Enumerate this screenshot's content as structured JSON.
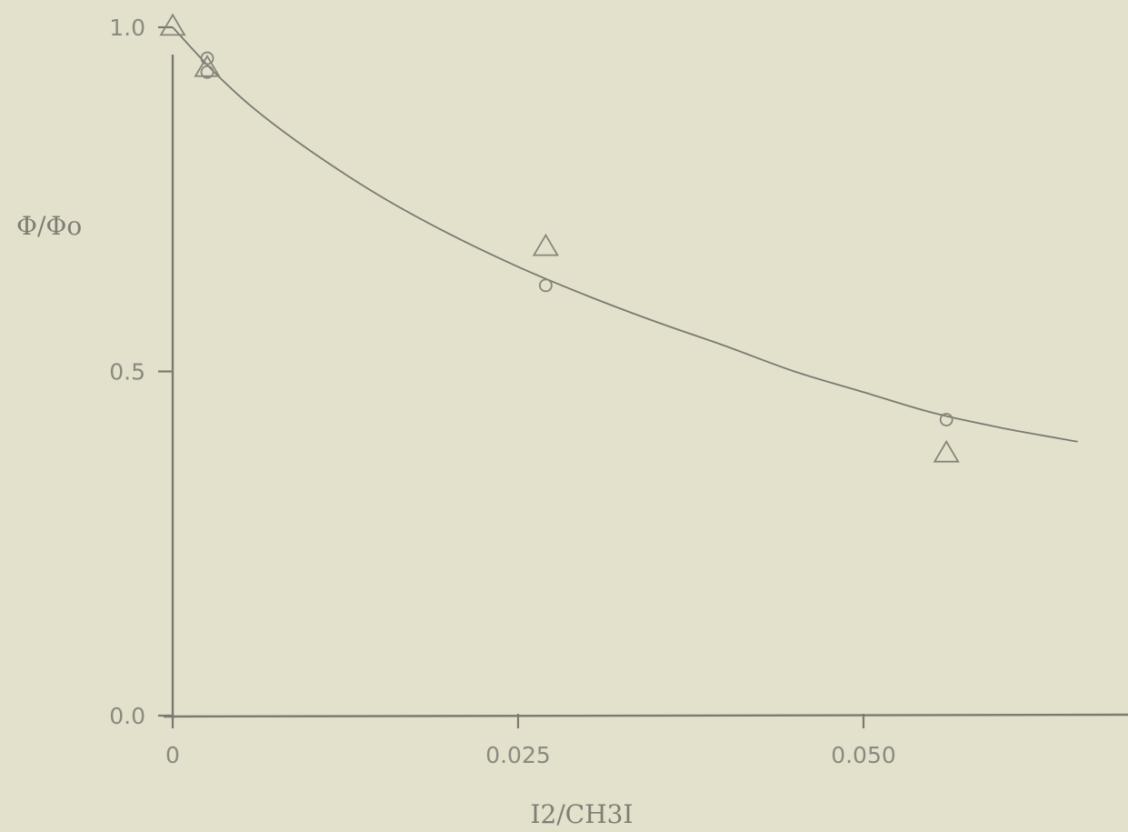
{
  "chart_data": {
    "type": "scatter",
    "xlabel": "I2/CH3I",
    "ylabel": "Φ/Φo",
    "xlim": [
      0,
      0.065
    ],
    "ylim": [
      0,
      1.0
    ],
    "x_ticks": [
      {
        "value": 0,
        "label": "0"
      },
      {
        "value": 0.025,
        "label": "0.025"
      },
      {
        "value": 0.05,
        "label": "0.050"
      }
    ],
    "y_ticks": [
      {
        "value": 0.0,
        "label": "0.0"
      },
      {
        "value": 0.5,
        "label": "0.5"
      },
      {
        "value": 1.0,
        "label": "1.0"
      }
    ],
    "series": [
      {
        "marker": "circle",
        "points": [
          {
            "x": 0.0025,
            "y": 0.955
          },
          {
            "x": 0.0025,
            "y": 0.935
          },
          {
            "x": 0.027,
            "y": 0.625
          },
          {
            "x": 0.056,
            "y": 0.43
          }
        ]
      },
      {
        "marker": "triangle",
        "points": [
          {
            "x": 0.0,
            "y": 1.0
          },
          {
            "x": 0.0025,
            "y": 0.94
          },
          {
            "x": 0.027,
            "y": 0.68
          },
          {
            "x": 0.056,
            "y": 0.38
          }
        ]
      }
    ],
    "fit_curve": {
      "x": [
        0.0,
        0.003,
        0.006,
        0.01,
        0.015,
        0.02,
        0.025,
        0.03,
        0.035,
        0.04,
        0.045,
        0.05,
        0.055,
        0.06,
        0.0655
      ],
      "y": [
        1.0,
        0.935,
        0.88,
        0.82,
        0.755,
        0.7,
        0.652,
        0.61,
        0.572,
        0.537,
        0.5,
        0.47,
        0.44,
        0.418,
        0.398
      ]
    }
  }
}
